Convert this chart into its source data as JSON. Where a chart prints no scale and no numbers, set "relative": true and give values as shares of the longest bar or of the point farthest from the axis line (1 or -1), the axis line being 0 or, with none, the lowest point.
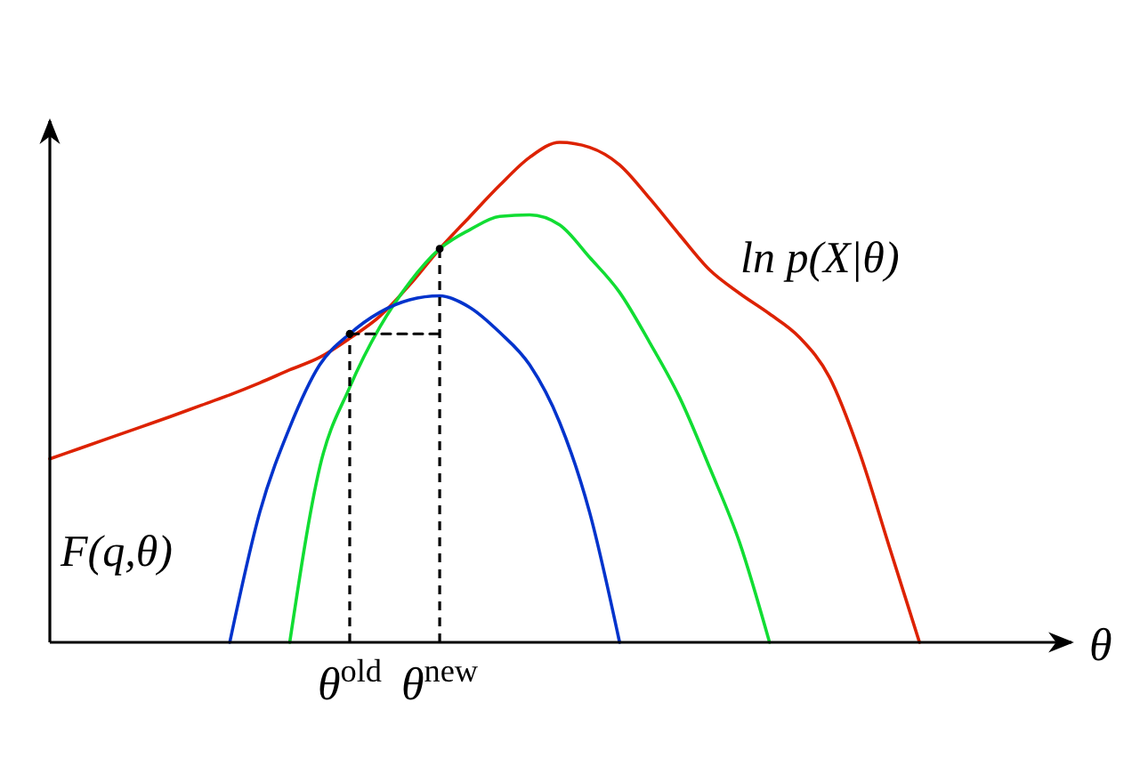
{
  "chart_data": {
    "type": "line",
    "relative": true,
    "xlabel": "θ",
    "categories": [
      null,
      null,
      null,
      null,
      null,
      null,
      null,
      null,
      null,
      null,
      "θ$^{old}$",
      null,
      null,
      "θ$^{new}$",
      null,
      null,
      null,
      null,
      null,
      null,
      null,
      null,
      null,
      null,
      null,
      null,
      null,
      null,
      null,
      null,
      null,
      null,
      null,
      null
    ],
    "series": [
      {
        "color": "#dd2200",
        "values": [
          0.367,
          0.388,
          0.409,
          0.43,
          0.451,
          0.473,
          0.495,
          0.519,
          0.545,
          0.57,
          0.608,
          0.652,
          0.715,
          0.787,
          0.851,
          0.914,
          0.97,
          1.0,
          0.99,
          0.955,
          0.888,
          0.815,
          0.745,
          0.698,
          0.657,
          0.61,
          0.53,
          0.38,
          0.19,
          0,
          null,
          null,
          null,
          null
        ]
      },
      {
        "color": "#11dd33",
        "values": [
          null,
          null,
          null,
          null,
          null,
          null,
          null,
          null,
          0,
          0.35,
          0.51,
          0.63,
          0.72,
          0.787,
          0.825,
          0.852,
          0.855,
          0.835,
          0.77,
          0.7,
          0.6,
          0.49,
          0.35,
          0.2,
          0,
          null,
          null,
          null,
          null,
          null,
          null,
          null,
          null,
          null
        ]
      },
      {
        "color": "#0033cc",
        "values": [
          null,
          null,
          null,
          null,
          null,
          null,
          0,
          0.26,
          0.43,
          0.555,
          0.617,
          0.66,
          0.685,
          0.693,
          0.67,
          0.62,
          0.555,
          0.44,
          0.26,
          0,
          null,
          null,
          null,
          null,
          null,
          null,
          null,
          null,
          null,
          null,
          null,
          null,
          null,
          null
        ]
      },
      {
        "type": "lollipop",
        "color": "#000000",
        "line_style": "dashed",
        "marker": "circle",
        "values": [
          null,
          null,
          null,
          null,
          null,
          null,
          null,
          null,
          null,
          null,
          0.617,
          null,
          null,
          0.787,
          null,
          null,
          null,
          null,
          null,
          null,
          null,
          null,
          null,
          null,
          null,
          null,
          null,
          null,
          null,
          null,
          null,
          null,
          null,
          null
        ]
      },
      {
        "color": "#000000",
        "line_style": "dashed",
        "values": [
          null,
          null,
          null,
          null,
          null,
          null,
          null,
          null,
          null,
          null,
          0.617,
          null,
          null,
          0.617,
          null,
          null,
          null,
          null,
          null,
          null,
          null,
          null,
          null,
          null,
          null,
          null,
          null,
          null,
          null,
          null,
          null,
          null,
          null,
          null
        ]
      }
    ],
    "annotations": [
      "ln p(X|θ)",
      "F(q,θ)"
    ]
  }
}
